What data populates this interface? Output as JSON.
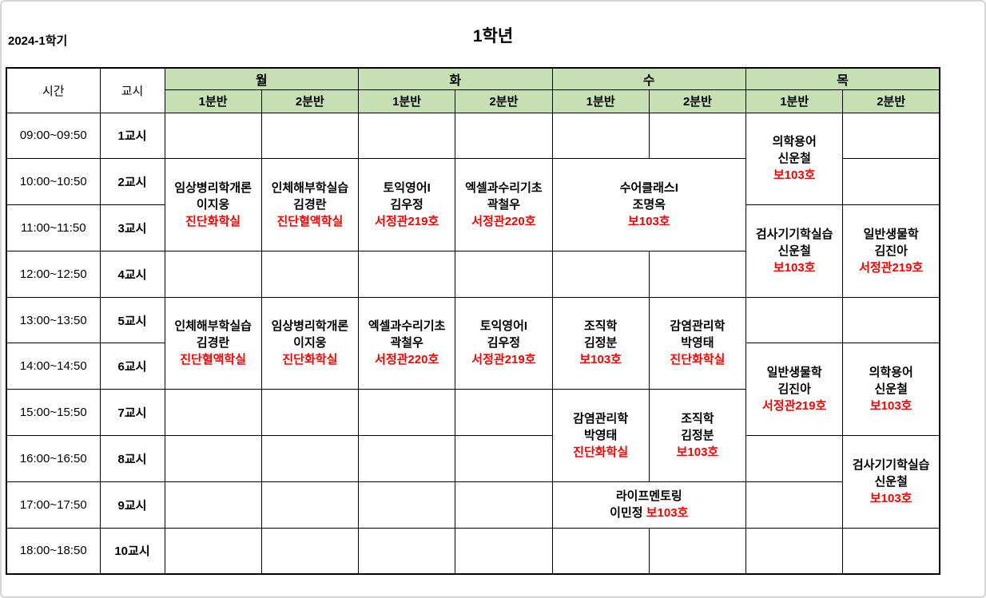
{
  "page": {
    "semester": "2024-1학기",
    "title": "1학년"
  },
  "colors": {
    "header_green": "#c6e0b4",
    "room_red": "#ff0000",
    "grid_border": "#000000"
  },
  "table": {
    "corner_time": "시간",
    "corner_period": "교시",
    "days": [
      "월",
      "화",
      "수",
      "목"
    ],
    "sections": [
      "1분반",
      "2분반"
    ],
    "periods": [
      {
        "time": "09:00~09:50",
        "label": "1교시"
      },
      {
        "time": "10:00~10:50",
        "label": "2교시"
      },
      {
        "time": "11:00~11:50",
        "label": "3교시"
      },
      {
        "time": "12:00~12:50",
        "label": "4교시"
      },
      {
        "time": "13:00~13:50",
        "label": "5교시"
      },
      {
        "time": "14:00~14:50",
        "label": "6교시"
      },
      {
        "time": "15:00~15:50",
        "label": "7교시"
      },
      {
        "time": "16:00~16:50",
        "label": "8교시"
      },
      {
        "time": "17:00~17:50",
        "label": "9교시"
      },
      {
        "time": "18:00~18:50",
        "label": "10교시"
      }
    ],
    "classes": [
      {
        "day": 0,
        "section": 0,
        "start": 2,
        "rowspan": 2,
        "colspan": 1,
        "subject": "임상병리학개론",
        "teacher": "이지웅",
        "room": "진단화학실",
        "room_inline": false
      },
      {
        "day": 0,
        "section": 1,
        "start": 2,
        "rowspan": 2,
        "colspan": 1,
        "subject": "인체해부학실습",
        "teacher": "김경란",
        "room": "진단혈액학실",
        "room_inline": false
      },
      {
        "day": 0,
        "section": 0,
        "start": 5,
        "rowspan": 2,
        "colspan": 1,
        "subject": "인체해부학실습",
        "teacher": "김경란",
        "room": "진단혈액학실",
        "room_inline": false
      },
      {
        "day": 0,
        "section": 1,
        "start": 5,
        "rowspan": 2,
        "colspan": 1,
        "subject": "임상병리학개론",
        "teacher": "이지웅",
        "room": "진단화학실",
        "room_inline": false
      },
      {
        "day": 1,
        "section": 0,
        "start": 2,
        "rowspan": 2,
        "colspan": 1,
        "subject": "토익영어I",
        "teacher": "김우정",
        "room": "서정관219호",
        "room_inline": false
      },
      {
        "day": 1,
        "section": 1,
        "start": 2,
        "rowspan": 2,
        "colspan": 1,
        "subject": "엑셀과수리기초",
        "teacher": "곽철우",
        "room": "서정관220호",
        "room_inline": false
      },
      {
        "day": 1,
        "section": 0,
        "start": 5,
        "rowspan": 2,
        "colspan": 1,
        "subject": "엑셀과수리기초",
        "teacher": "곽철우",
        "room": "서정관220호",
        "room_inline": false
      },
      {
        "day": 1,
        "section": 1,
        "start": 5,
        "rowspan": 2,
        "colspan": 1,
        "subject": "토익영어I",
        "teacher": "김우정",
        "room": "서정관219호",
        "room_inline": false
      },
      {
        "day": 2,
        "section": 0,
        "start": 2,
        "rowspan": 2,
        "colspan": 2,
        "subject": "수어클래스I",
        "teacher": "조명옥",
        "room": "보103호",
        "room_inline": false
      },
      {
        "day": 2,
        "section": 0,
        "start": 5,
        "rowspan": 2,
        "colspan": 1,
        "subject": "조직학",
        "teacher": "김정분",
        "room": "보103호",
        "room_inline": false
      },
      {
        "day": 2,
        "section": 1,
        "start": 5,
        "rowspan": 2,
        "colspan": 1,
        "subject": "감염관리학",
        "teacher": "박영태",
        "room": "진단화학실",
        "room_inline": false
      },
      {
        "day": 2,
        "section": 0,
        "start": 7,
        "rowspan": 2,
        "colspan": 1,
        "subject": "감염관리학",
        "teacher": "박영태",
        "room": "진단화학실",
        "room_inline": false
      },
      {
        "day": 2,
        "section": 1,
        "start": 7,
        "rowspan": 2,
        "colspan": 1,
        "subject": "조직학",
        "teacher": "김정분",
        "room": "보103호",
        "room_inline": false
      },
      {
        "day": 2,
        "section": 0,
        "start": 9,
        "rowspan": 1,
        "colspan": 2,
        "subject": "라이프멘토링",
        "teacher": "이민정",
        "room": "보103호",
        "room_inline": true
      },
      {
        "day": 3,
        "section": 0,
        "start": 1,
        "rowspan": 2,
        "colspan": 1,
        "subject": "의학용어",
        "teacher": "신운철",
        "room": "보103호",
        "room_inline": false
      },
      {
        "day": 3,
        "section": 0,
        "start": 3,
        "rowspan": 2,
        "colspan": 1,
        "subject": "검사기기학실습",
        "teacher": "신운철",
        "room": "보103호",
        "room_inline": false
      },
      {
        "day": 3,
        "section": 1,
        "start": 3,
        "rowspan": 2,
        "colspan": 1,
        "subject": "일반생물학",
        "teacher": "김진아",
        "room": "서정관219호",
        "room_inline": false
      },
      {
        "day": 3,
        "section": 0,
        "start": 6,
        "rowspan": 2,
        "colspan": 1,
        "subject": "일반생물학",
        "teacher": "김진아",
        "room": "서정관219호",
        "room_inline": false
      },
      {
        "day": 3,
        "section": 1,
        "start": 6,
        "rowspan": 2,
        "colspan": 1,
        "subject": "의학용어",
        "teacher": "신운철",
        "room": "보103호",
        "room_inline": false
      },
      {
        "day": 3,
        "section": 1,
        "start": 8,
        "rowspan": 2,
        "colspan": 1,
        "subject": "검사기기학실습",
        "teacher": "신운철",
        "room": "보103호",
        "room_inline": false
      }
    ],
    "layout": {
      "time_col_width": 117,
      "period_col_width": 81,
      "slot_col_width": 121.25
    }
  }
}
